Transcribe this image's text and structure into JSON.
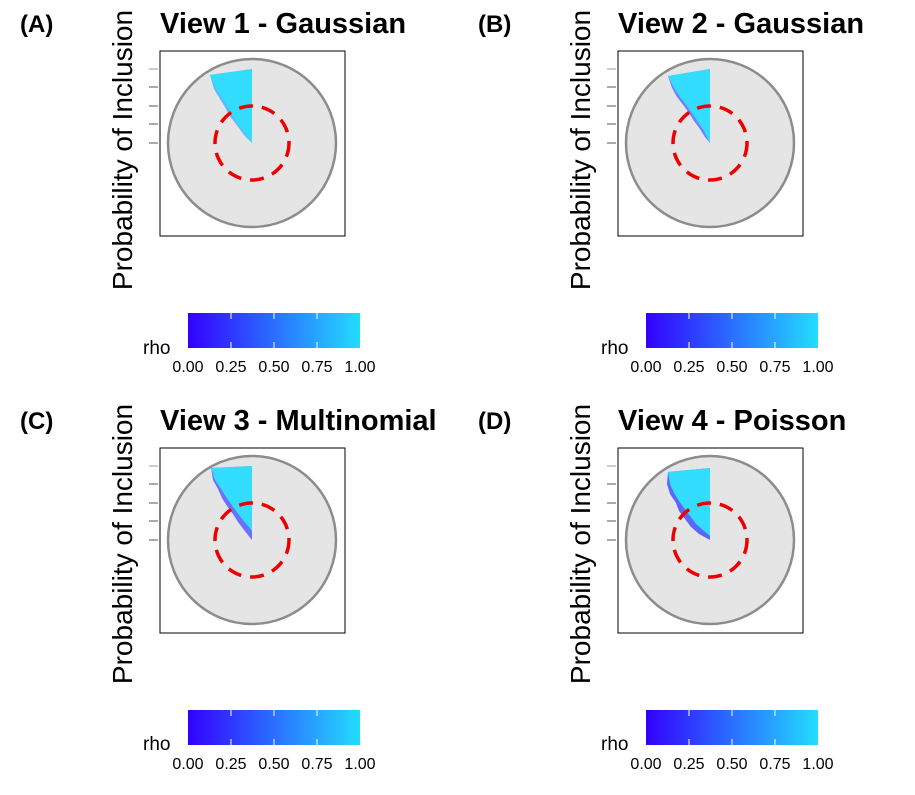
{
  "colors": {
    "low": "#3300ff",
    "high": "#22ddff",
    "disc_fill": "#e5e5e5",
    "disc_edge": "#8c8c8c",
    "dashed_circle": "#ee0000"
  },
  "panels": [
    {
      "letter": "(A)",
      "title": "View 1 - Gaussian",
      "ylabel": "Probability of Inclusion"
    },
    {
      "letter": "(B)",
      "title": "View 2 - Gaussian",
      "ylabel": "Probability of Inclusion"
    },
    {
      "letter": "(C)",
      "title": "View 3 - Multinomial",
      "ylabel": "Probability of Inclusion"
    },
    {
      "letter": "(D)",
      "title": "View 4 - Poisson",
      "ylabel": "Probability of Inclusion"
    }
  ],
  "legend": {
    "title": "rho",
    "ticks": [
      "0.00",
      "0.25",
      "0.50",
      "0.75",
      "1.00"
    ]
  },
  "chart_data": [
    {
      "type": "polar-area",
      "title": "View 1 - Gaussian",
      "ylabel": "Probability of Inclusion",
      "color_var": "rho",
      "color_range": [
        0,
        1
      ],
      "y_ticks": 5
    },
    {
      "type": "polar-area",
      "title": "View 2 - Gaussian",
      "ylabel": "Probability of Inclusion",
      "color_var": "rho",
      "color_range": [
        0,
        1
      ],
      "y_ticks": 5
    },
    {
      "type": "polar-area",
      "title": "View 3 - Multinomial",
      "ylabel": "Probability of Inclusion",
      "color_var": "rho",
      "color_range": [
        0,
        1
      ],
      "y_ticks": 5
    },
    {
      "type": "polar-area",
      "title": "View 4 - Poisson",
      "ylabel": "Probability of Inclusion",
      "color_var": "rho",
      "color_range": [
        0,
        1
      ],
      "y_ticks": 5
    }
  ]
}
